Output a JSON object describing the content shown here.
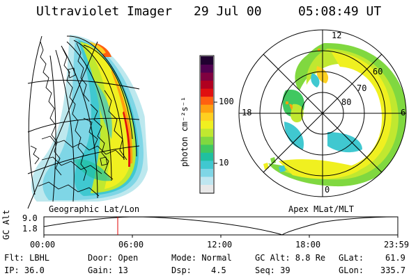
{
  "header": {
    "title": "Ultraviolet Imager",
    "date": "29 Jul 00",
    "time": "05:08:49 UT"
  },
  "left_panel": {
    "caption": "Geographic Lat/Lon"
  },
  "right_panel": {
    "caption": "Apex MLat/MLT",
    "mlt_labels": [
      "12",
      "18",
      "6",
      "0"
    ],
    "lat_labels": [
      "60",
      "70",
      "80"
    ]
  },
  "colorbar": {
    "unit_label": "photon cm⁻²s⁻¹",
    "ticks": [
      "100",
      "10"
    ],
    "colors": [
      "#e8e8e8",
      "#bfe6f0",
      "#7fd6e6",
      "#40c8d0",
      "#20c0a0",
      "#40c860",
      "#80d840",
      "#c0e830",
      "#f0f020",
      "#ffd020",
      "#ffa010",
      "#ff6010",
      "#e01010",
      "#b00020",
      "#800040",
      "#500050",
      "#200030"
    ]
  },
  "altitude_plot": {
    "ylabel": "GC Alt",
    "y_ticks": [
      "9.0",
      "1.8"
    ],
    "x_ticks": [
      "00:00",
      "06:00",
      "12:00",
      "18:00",
      "23:59"
    ],
    "current_time_color": "#e00000"
  },
  "info": {
    "flt": "Flt: LBHL",
    "ip": "IP: 36.0",
    "door": "Door: Open",
    "gain": "Gain: 13",
    "mode": "Mode: Normal",
    "dsp_label": "Dsp:",
    "dsp_value": "4.5",
    "gcalt": "GC Alt: 8.8 Re",
    "seq": "Seq: 39",
    "glat_label": "GLat:",
    "glat_value": "61.9",
    "glon_label": "GLon:",
    "glon_value": "335.7"
  }
}
